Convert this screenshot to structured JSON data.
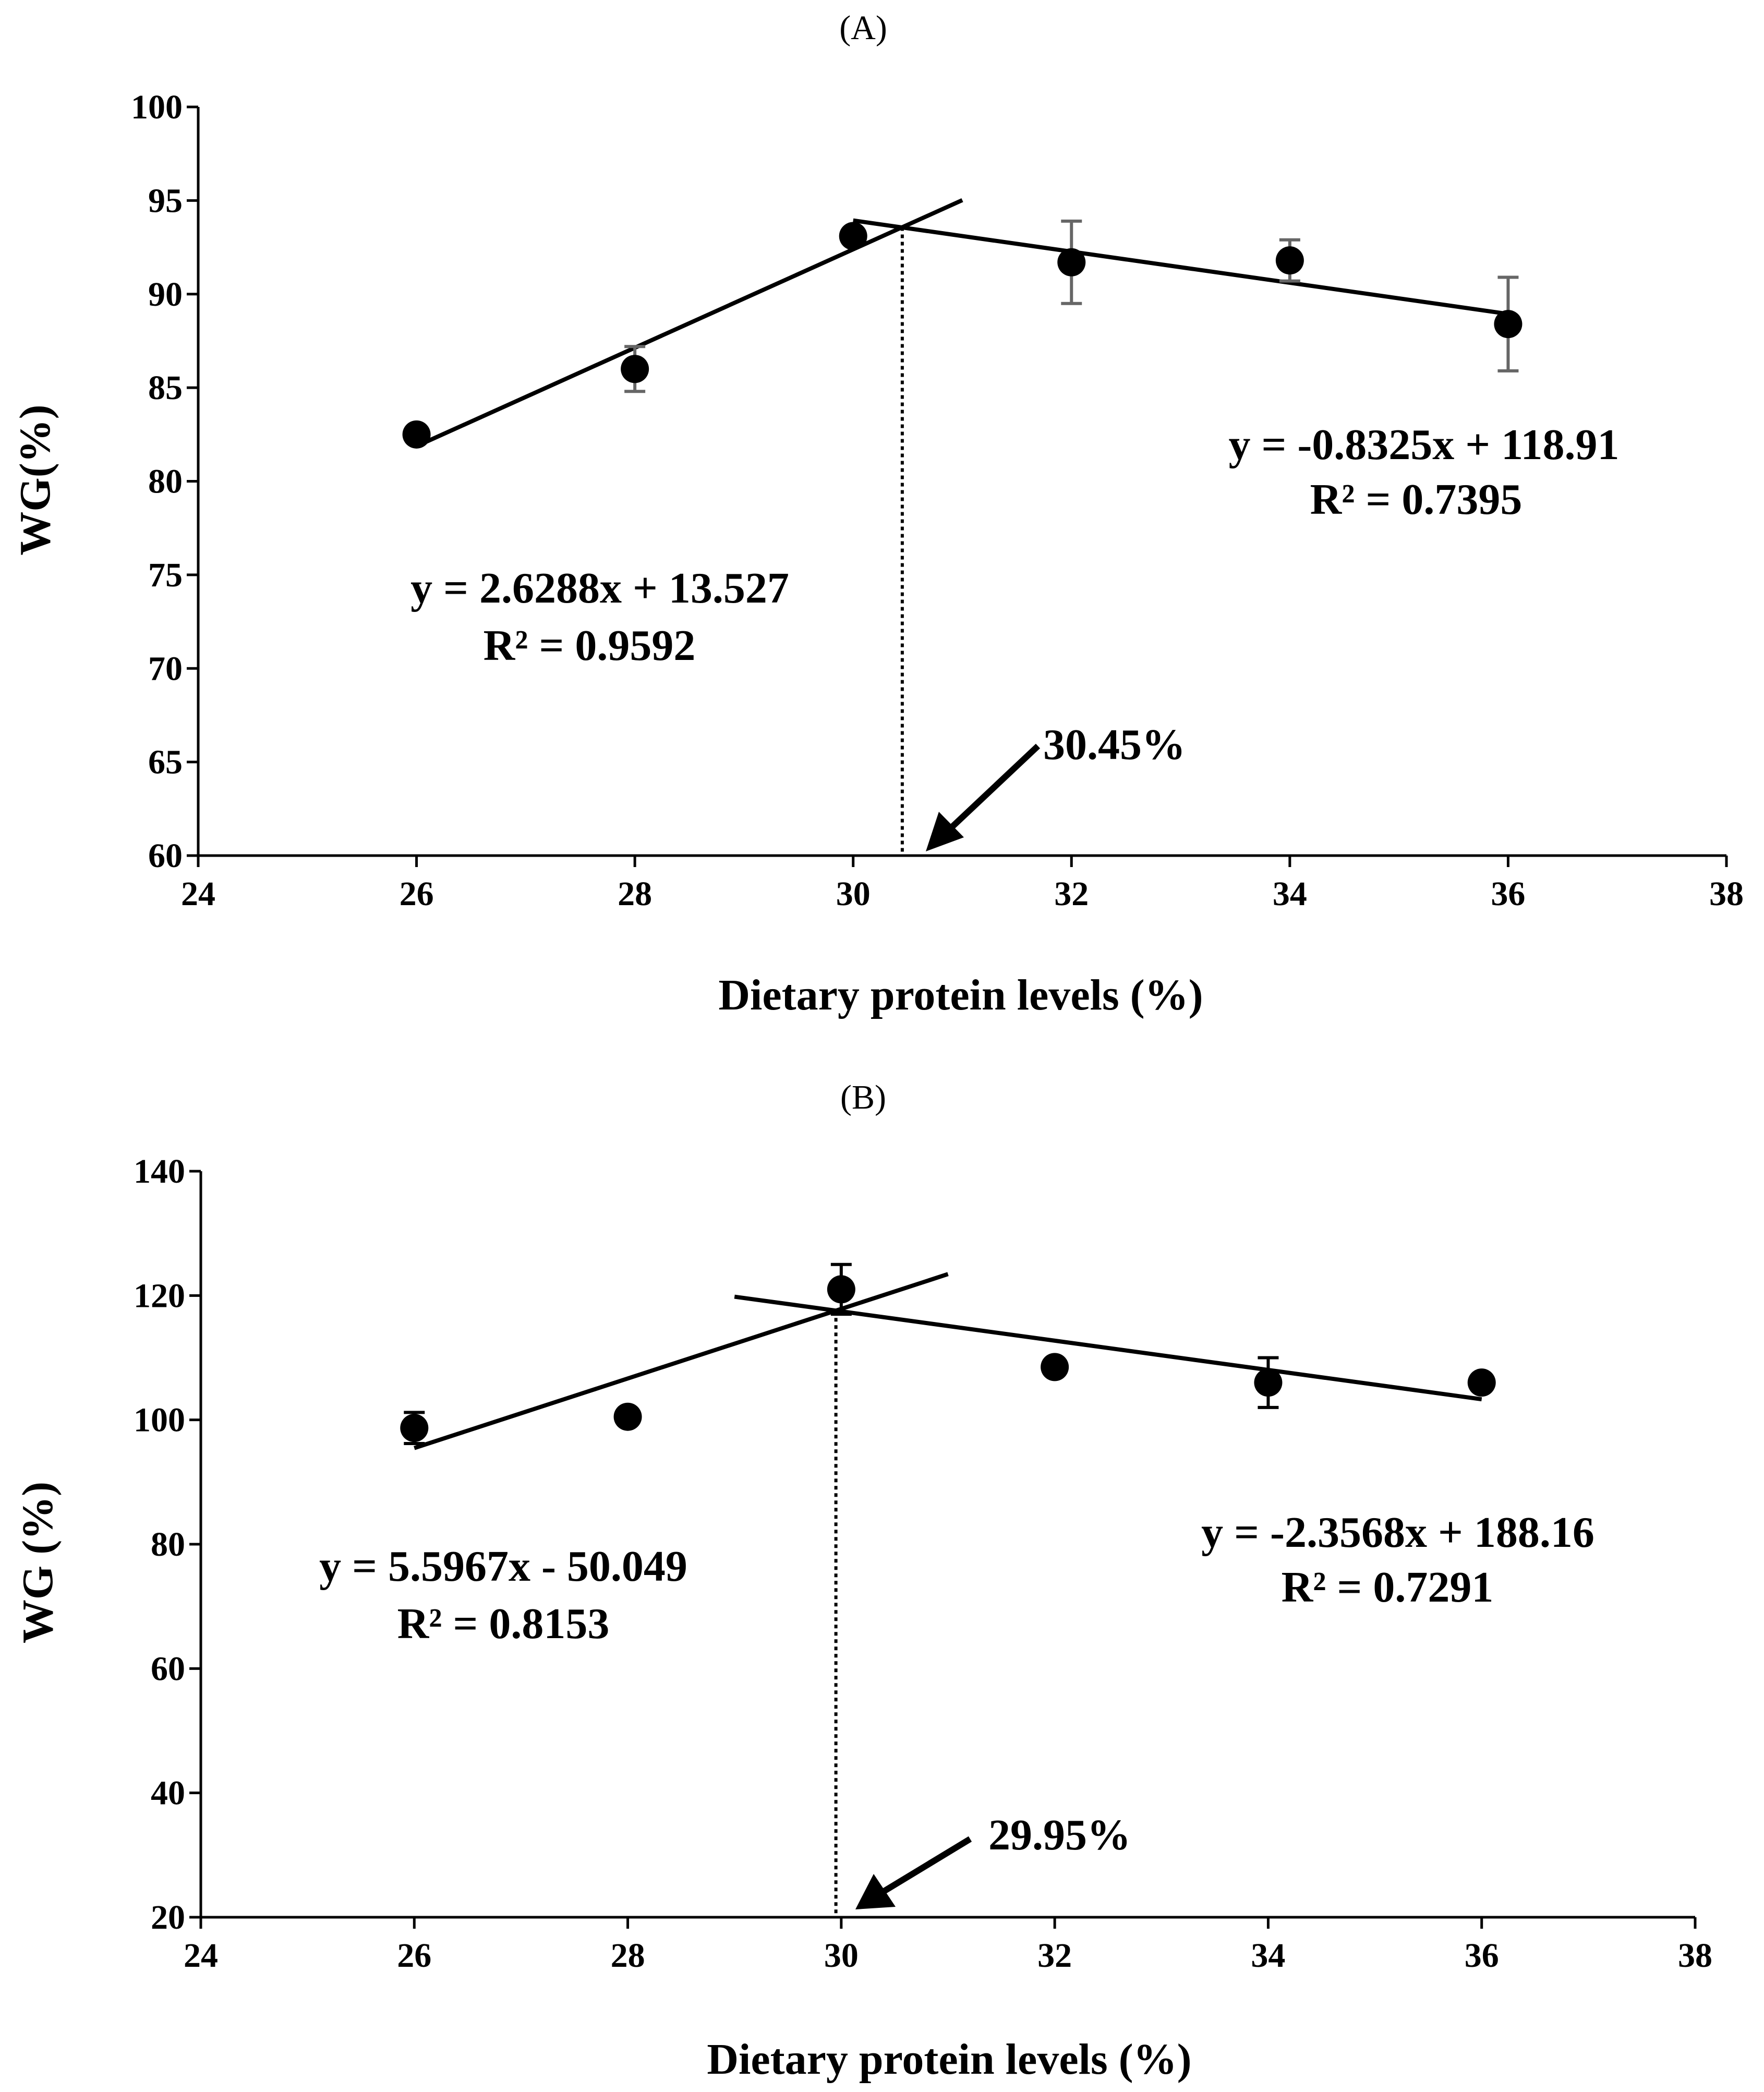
{
  "chart_data": [
    {
      "type": "scatter",
      "title": "(A)",
      "xlabel": "Dietary protein levels (%)",
      "ylabel": "WG(%)",
      "xlim": [
        24,
        38
      ],
      "ylim": [
        60,
        100
      ],
      "xticks": [
        24,
        26,
        28,
        30,
        32,
        34,
        36,
        38
      ],
      "yticks": [
        60,
        65,
        70,
        75,
        80,
        85,
        90,
        95,
        100
      ],
      "points": [
        {
          "x": 26,
          "y": 82.5,
          "err": 0.4
        },
        {
          "x": 28,
          "y": 86.0,
          "err": 1.2
        },
        {
          "x": 30,
          "y": 93.1,
          "err": 0.3
        },
        {
          "x": 32,
          "y": 91.7,
          "err": 2.2
        },
        {
          "x": 34,
          "y": 91.8,
          "err": 1.1
        },
        {
          "x": 36,
          "y": 88.4,
          "err": 2.5
        }
      ],
      "fits": [
        {
          "slope": 2.6288,
          "intercept": 13.527,
          "x_start": 26,
          "x_end": 31.0,
          "equation": "y = 2.6288x + 13.527",
          "r2": "R² = 0.9592"
        },
        {
          "slope": -0.8325,
          "intercept": 118.91,
          "x_start": 30,
          "x_end": 36,
          "equation": "y = -0.8325x + 118.91",
          "r2": "R² = 0.7395"
        }
      ],
      "breakpoint": {
        "x": 30.45,
        "label": "30.45%"
      }
    },
    {
      "type": "scatter",
      "title": "(B)",
      "xlabel": "Dietary protein levels (%)",
      "ylabel": "WG (%)",
      "xlim": [
        24,
        38
      ],
      "ylim": [
        20,
        140
      ],
      "xticks": [
        24,
        26,
        28,
        30,
        32,
        34,
        36,
        38
      ],
      "yticks": [
        20,
        40,
        60,
        80,
        100,
        120,
        140
      ],
      "points": [
        {
          "x": 26,
          "y": 98.7,
          "err": 2.5
        },
        {
          "x": 28,
          "y": 100.5,
          "err": 1.2
        },
        {
          "x": 30,
          "y": 121.0,
          "err": 4.0
        },
        {
          "x": 32,
          "y": 108.5,
          "err": 0.5
        },
        {
          "x": 34,
          "y": 106.0,
          "err": 4.0
        },
        {
          "x": 36,
          "y": 106.0,
          "err": 0.5
        }
      ],
      "fits": [
        {
          "slope": 5.5967,
          "intercept": -50.049,
          "x_start": 26,
          "x_end": 31.0,
          "equation": "y = 5.5967x - 50.049",
          "r2": "R² = 0.8153"
        },
        {
          "slope": -2.3568,
          "intercept": 188.16,
          "x_start": 29,
          "x_end": 36,
          "equation": "y = -2.3568x + 188.16",
          "r2": "R² = 0.7291"
        }
      ],
      "breakpoint": {
        "x": 29.95,
        "label": "29.95%"
      }
    }
  ]
}
